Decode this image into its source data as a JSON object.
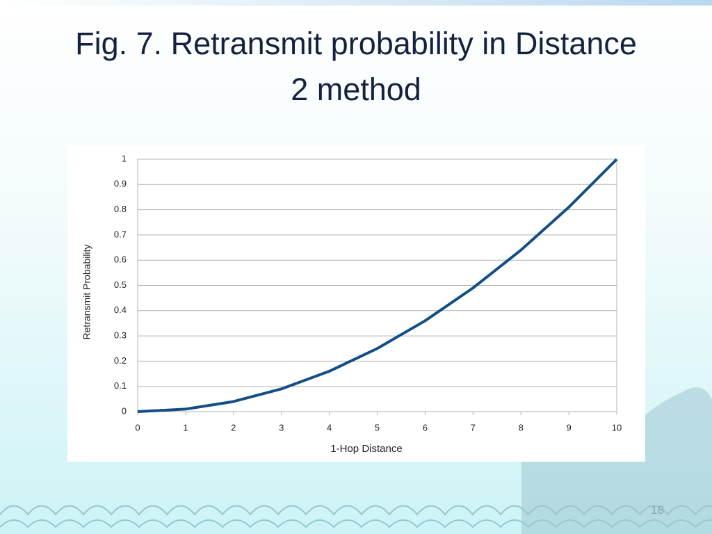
{
  "title": "Fig. 7. Retransmit probability in Distance 2 method",
  "page_number": "18",
  "chart_data": {
    "type": "line",
    "x_label": "1-Hop Distance",
    "y_label": "Retransmit Probability",
    "x": [
      0,
      1,
      2,
      3,
      4,
      5,
      6,
      7,
      8,
      9,
      10
    ],
    "series": [
      {
        "name": "Retransmit Probability",
        "color": "#134f86",
        "values": [
          0,
          0.01,
          0.04,
          0.09,
          0.16,
          0.25,
          0.36,
          0.49,
          0.64,
          0.81,
          1
        ]
      }
    ],
    "xlim": [
      0,
      10
    ],
    "xticks": [
      0,
      1,
      2,
      3,
      4,
      5,
      6,
      7,
      8,
      9,
      10
    ],
    "ylim": [
      0,
      1
    ],
    "yticks": [
      0,
      0.1,
      0.2,
      0.3,
      0.4,
      0.5,
      0.6,
      0.7,
      0.8,
      0.9,
      1
    ],
    "grid": true
  }
}
